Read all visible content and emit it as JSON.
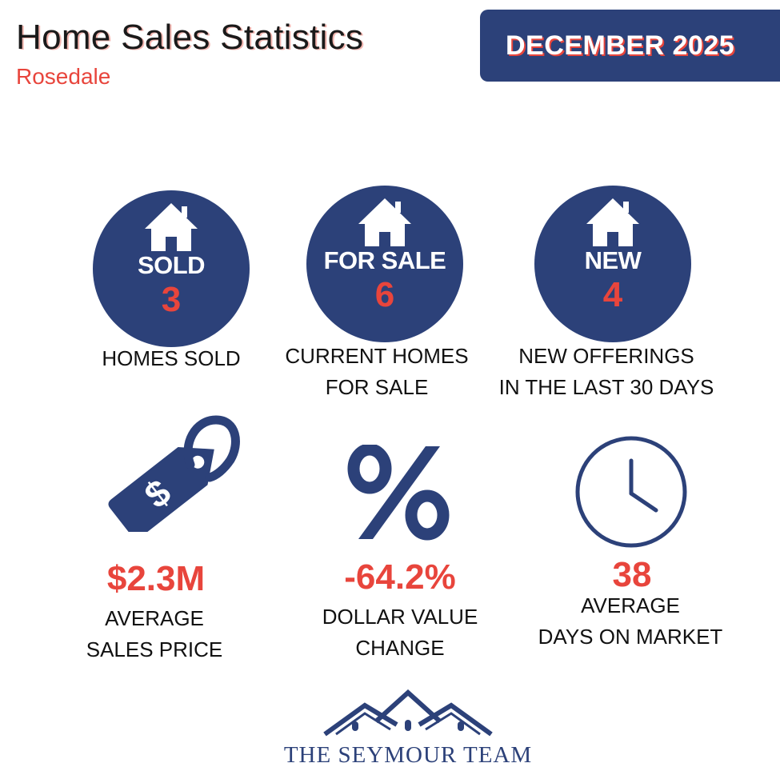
{
  "header": {
    "title": "Home Sales Statistics",
    "subtitle": "Rosedale",
    "month": "DECEMBER 2025"
  },
  "circles": [
    {
      "label": "SOLD",
      "value": "3",
      "icon": "house-icon",
      "caption_line1": "HOMES SOLD",
      "caption_line2": ""
    },
    {
      "label": "FOR SALE",
      "value": "6",
      "icon": "house-icon",
      "caption_line1": "CURRENT HOMES",
      "caption_line2": "FOR SALE"
    },
    {
      "label": "NEW",
      "value": "4",
      "icon": "house-icon",
      "caption_line1": "NEW OFFERINGS",
      "caption_line2": "IN THE LAST 30 DAYS"
    }
  ],
  "stats": [
    {
      "icon": "price-tag-icon",
      "value": "$2.3M",
      "caption_line1": "AVERAGE",
      "caption_line2": "SALES PRICE"
    },
    {
      "icon": "percent-icon",
      "value": "-64.2%",
      "caption_line1": "DOLLAR VALUE",
      "caption_line2": "CHANGE"
    },
    {
      "icon": "clock-icon",
      "value": "38",
      "caption_line1": "AVERAGE",
      "caption_line2": "DAYS ON MARKET"
    }
  ],
  "footer": {
    "logo_icon": "rooftops-logo-icon",
    "brand": "THE SEYMOUR TEAM"
  },
  "colors": {
    "navy": "#2c4179",
    "accent_red": "#e8453c",
    "text": "#111111",
    "background": "#ffffff"
  }
}
